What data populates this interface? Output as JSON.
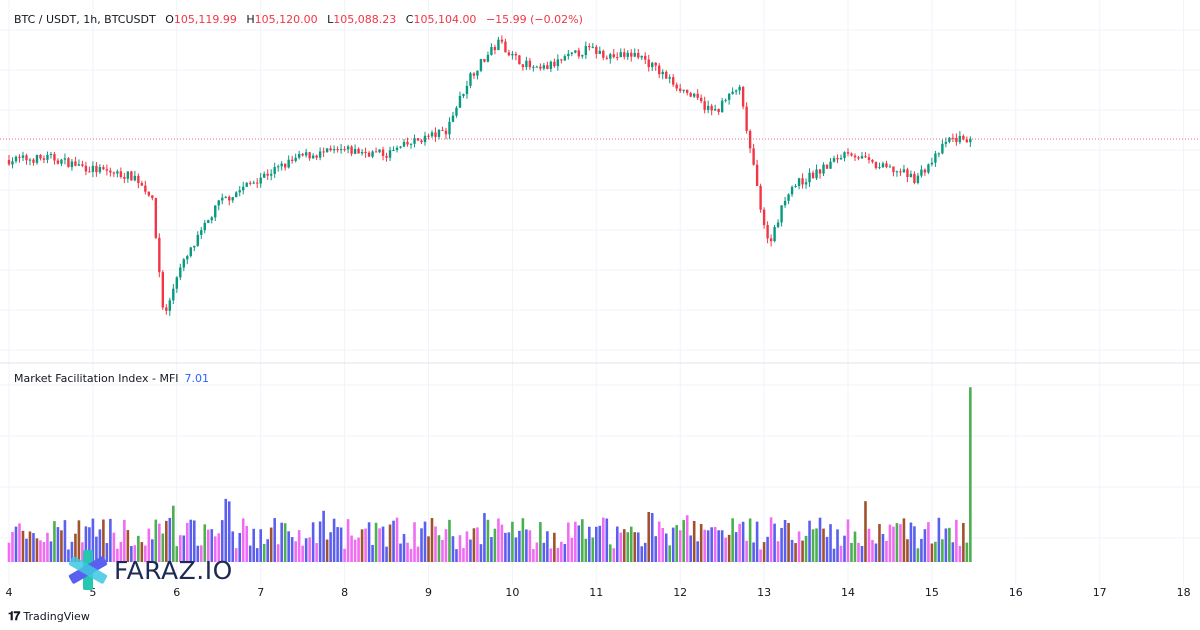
{
  "header": {
    "symbol": "BTC / USDT, 1h, BTCUSDT",
    "o_label": "O",
    "o_value": "105,119.99",
    "h_label": "H",
    "h_value": "105,120.00",
    "l_label": "L",
    "l_value": "105,088.23",
    "c_label": "C",
    "c_value": "105,104.00",
    "change": "−15.99 (−0.02%)"
  },
  "indicator": {
    "title": "Market Facilitation Index - MFI",
    "value": "7.01"
  },
  "brand": {
    "name": "TradingView",
    "icon": "tradingview-logo-icon"
  },
  "watermark": {
    "text": "FARAZ.IO",
    "icon": "faraz-star-logo-icon"
  },
  "colors": {
    "up": "#089981",
    "down": "#f23645",
    "mfi_blue": "#5b5fef",
    "mfi_pink": "#f06cf2",
    "mfi_green": "#4caf50",
    "mfi_brown": "#a0522d",
    "grid": "#f0f3fa",
    "current_price_line": "#f23645"
  },
  "chart_data": [
    {
      "type": "candlestick",
      "title": "BTC / USDT, 1h, BTCUSDT",
      "x_axis": {
        "type": "date",
        "ticks": [
          "4",
          "5",
          "6",
          "7",
          "8",
          "9",
          "10",
          "11",
          "12",
          "13",
          "14",
          "15",
          "16",
          "17",
          "18"
        ],
        "range_days": [
          4,
          18.2
        ]
      },
      "y_axis": {
        "approx_range": [
          98000,
          107500
        ],
        "tick_labels_visible": false
      },
      "last_close": 105104.0,
      "grid": true,
      "series_path_hourly_close": [
        [
          4.0,
          104550
        ],
        [
          4.5,
          104600
        ],
        [
          5.0,
          104300
        ],
        [
          5.5,
          104100
        ],
        [
          5.7,
          103600
        ],
        [
          5.85,
          100300
        ],
        [
          6.0,
          101500
        ],
        [
          6.5,
          103400
        ],
        [
          7.0,
          104100
        ],
        [
          7.5,
          104650
        ],
        [
          8.0,
          104800
        ],
        [
          8.5,
          104700
        ],
        [
          8.9,
          105100
        ],
        [
          9.2,
          105300
        ],
        [
          9.5,
          106800
        ],
        [
          9.85,
          107700
        ],
        [
          10.0,
          107300
        ],
        [
          10.3,
          106900
        ],
        [
          10.6,
          107200
        ],
        [
          10.9,
          107500
        ],
        [
          11.2,
          107300
        ],
        [
          11.5,
          107350
        ],
        [
          11.8,
          106800
        ],
        [
          12.1,
          106300
        ],
        [
          12.4,
          105800
        ],
        [
          12.7,
          106500
        ],
        [
          12.9,
          104000
        ],
        [
          13.05,
          102300
        ],
        [
          13.3,
          103800
        ],
        [
          13.7,
          104300
        ],
        [
          14.0,
          104800
        ],
        [
          14.3,
          104400
        ],
        [
          14.6,
          104250
        ],
        [
          14.8,
          104050
        ],
        [
          15.0,
          104500
        ],
        [
          15.2,
          105100
        ],
        [
          15.45,
          105104
        ]
      ]
    },
    {
      "type": "bar",
      "title": "Market Facilitation Index - MFI",
      "last_value": 7.01,
      "typical_range": [
        0.5,
        1.8
      ],
      "spike_at_day": 15.45
    }
  ]
}
